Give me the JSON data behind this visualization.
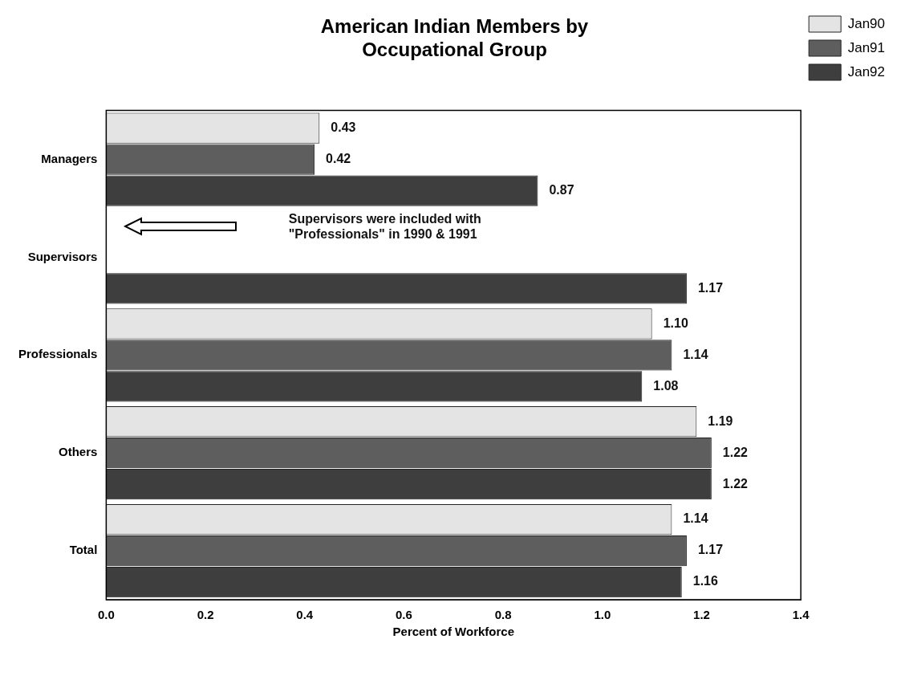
{
  "chart_data": {
    "type": "bar",
    "orientation": "horizontal",
    "title": "American Indian Members by\nOccupational Group",
    "xlabel": "Percent of Workforce",
    "categories": [
      "Managers",
      "Supervisors",
      "Professionals",
      "Others",
      "Total"
    ],
    "series": [
      {
        "name": "Jan90",
        "color": "#e4e4e4",
        "values": [
          0.43,
          null,
          1.1,
          1.19,
          1.14
        ],
        "value_labels": [
          "0.43",
          null,
          "1.10",
          "1.19",
          "1.14"
        ]
      },
      {
        "name": "Jan91",
        "color": "#5e5e5e",
        "values": [
          0.42,
          null,
          1.14,
          1.22,
          1.17
        ],
        "value_labels": [
          "0.42",
          null,
          "1.14",
          "1.22",
          "1.17"
        ]
      },
      {
        "name": "Jan92",
        "color": "#3e3e3e",
        "values": [
          0.87,
          1.17,
          1.08,
          1.22,
          1.16
        ],
        "value_labels": [
          "0.87",
          "1.17",
          "1.08",
          "1.22",
          "1.16"
        ]
      }
    ],
    "xlim": [
      0,
      1.4
    ],
    "xticks": [
      {
        "value": 0,
        "label": "0.0"
      },
      {
        "value": 0.2,
        "label": "0.2"
      },
      {
        "value": 0.4,
        "label": "0.4"
      },
      {
        "value": 0.6,
        "label": "0.6"
      },
      {
        "value": 0.8,
        "label": "0.8"
      },
      {
        "value": 1,
        "label": "1.0"
      },
      {
        "value": 1.2,
        "label": "1.2"
      },
      {
        "value": 1.4,
        "label": "1.4"
      }
    ],
    "legend": "top right",
    "annotations": [
      "Supervisors were included with\n\"Professionals\" in 1990 & 1991"
    ]
  }
}
